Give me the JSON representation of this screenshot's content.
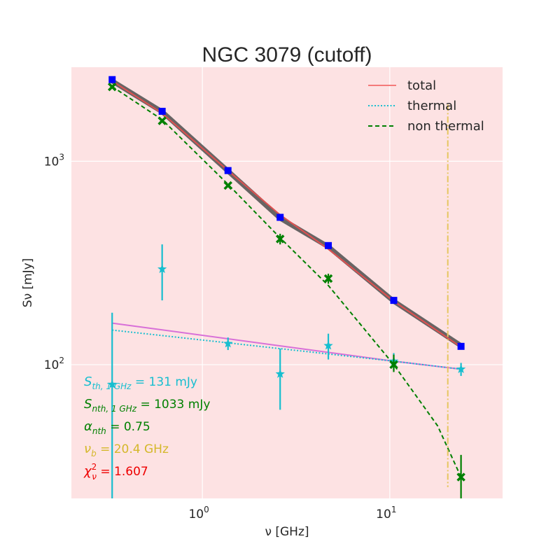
{
  "chart_data": {
    "type": "line",
    "scale": "log-log",
    "title": "NGC 3079 (cutoff)",
    "xlabel": "ν [GHz]",
    "ylabel": "Sν [mJy]",
    "xlim": [
      0.2,
      40
    ],
    "ylim": [
      22,
      2900
    ],
    "grid": true,
    "background": "#fde2e3",
    "xticks": [
      {
        "value": 1,
        "base": "10",
        "exp": "0"
      },
      {
        "value": 10,
        "base": "10",
        "exp": "1"
      }
    ],
    "yticks": [
      {
        "value": 100,
        "base": "10",
        "exp": "2"
      },
      {
        "value": 1000,
        "base": "10",
        "exp": "3"
      }
    ],
    "legend": {
      "position": "top-right",
      "entries": [
        {
          "label": "total",
          "color": "#f47a7a",
          "style": "solid"
        },
        {
          "label": "thermal",
          "color": "#17becf",
          "style": "dotted"
        },
        {
          "label": "non thermal",
          "color": "#008000",
          "style": "dashed"
        }
      ]
    },
    "series": [
      {
        "name": "total model",
        "color": "#e05050",
        "style": "solid",
        "x": [
          0.33,
          0.61,
          1.37,
          2.6,
          4.7,
          10.5,
          24
        ],
        "y": [
          2480,
          1720,
          900,
          545,
          370,
          205,
          122
        ]
      },
      {
        "name": "total posterior band",
        "color": "#4d4d4d",
        "style": "band",
        "x": [
          0.33,
          0.61,
          1.37,
          2.6,
          4.7,
          10.5,
          24
        ],
        "y": [
          2480,
          1750,
          895,
          525,
          380,
          205,
          124
        ]
      },
      {
        "name": "thermal model",
        "color": "#17becf",
        "style": "dotted",
        "x": [
          0.33,
          10.5,
          24
        ],
        "y": [
          148,
          104,
          95
        ]
      },
      {
        "name": "thermal alt",
        "color": "#d870d8",
        "style": "solid",
        "x": [
          0.33,
          10.5,
          24
        ],
        "y": [
          160,
          104,
          95
        ]
      },
      {
        "name": "non thermal model",
        "color": "#008000",
        "style": "dashed",
        "x": [
          0.33,
          0.61,
          1.37,
          2.6,
          4.7,
          10.5,
          18,
          24
        ],
        "y": [
          2330,
          1600,
          770,
          420,
          245,
          100,
          50,
          28
        ]
      },
      {
        "name": "total data",
        "color": "#0000ff",
        "marker": "square",
        "x": [
          0.33,
          0.61,
          1.37,
          2.6,
          4.7,
          10.5,
          24
        ],
        "y": [
          2520,
          1760,
          900,
          530,
          385,
          207,
          123
        ]
      },
      {
        "name": "non thermal data",
        "color": "#008000",
        "marker": "x",
        "x": [
          0.33,
          0.61,
          1.37,
          2.6,
          4.7,
          10.5,
          24
        ],
        "y": [
          2320,
          1580,
          760,
          415,
          265,
          100,
          28
        ],
        "yerr_low": [
          0,
          0,
          0,
          25,
          15,
          8,
          10
        ],
        "yerr_high": [
          0,
          0,
          0,
          25,
          15,
          12,
          8
        ]
      },
      {
        "name": "thermal data",
        "color": "#17becf",
        "marker": "star",
        "x": [
          0.33,
          0.61,
          1.37,
          2.6,
          4.7,
          10.5,
          24
        ],
        "y": [
          80,
          295,
          127,
          90,
          124,
          104,
          95
        ],
        "yerr_low": [
          58,
          88,
          9,
          30,
          18,
          10,
          7
        ],
        "yerr_high": [
          100,
          95,
          9,
          30,
          18,
          10,
          7
        ]
      }
    ],
    "cutoff_line": {
      "x": 20.4,
      "y_range": [
        25,
        1900
      ],
      "color": "#e6c660",
      "style": "dashdot"
    },
    "annotations": [
      {
        "prefix": "S",
        "sub": "th, 1 GHz",
        "value": " = 131 mJy",
        "color": "#17becf"
      },
      {
        "prefix": "S",
        "sub": "nth, 1 GHz",
        "value": " = 1033 mJy",
        "color": "#008000"
      },
      {
        "prefix": "α",
        "sub": "nth",
        "value": " = 0.75",
        "color": "#008000"
      },
      {
        "prefix": "ν",
        "sub": "b",
        "value": " = 20.4 GHz",
        "color": "#d4b82a"
      },
      {
        "prefix": "χ",
        "sup": "2",
        "sub": "ν",
        "value": " = 1.607",
        "color": "#ee0000"
      }
    ]
  }
}
